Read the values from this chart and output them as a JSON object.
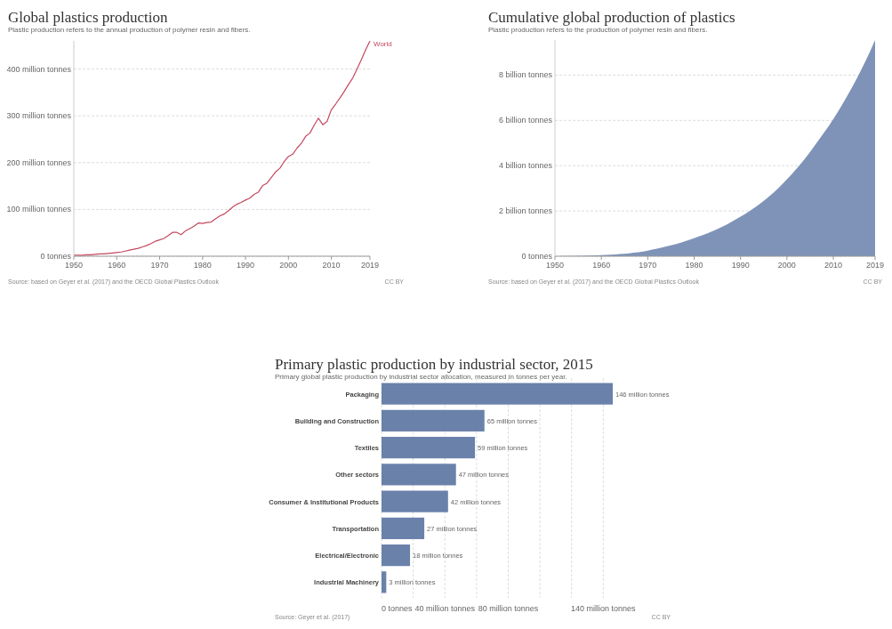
{
  "chart_data": [
    {
      "type": "line",
      "title": "Global plastics production",
      "subtitle": "Plastic production refers to the annual production of polymer resin and fibers.",
      "x": [
        1950,
        1951,
        1952,
        1953,
        1954,
        1955,
        1956,
        1957,
        1958,
        1959,
        1960,
        1961,
        1962,
        1963,
        1964,
        1965,
        1966,
        1967,
        1968,
        1969,
        1970,
        1971,
        1972,
        1973,
        1974,
        1975,
        1976,
        1977,
        1978,
        1979,
        1980,
        1981,
        1982,
        1983,
        1984,
        1985,
        1986,
        1987,
        1988,
        1989,
        1990,
        1991,
        1992,
        1993,
        1994,
        1995,
        1996,
        1997,
        1998,
        1999,
        2000,
        2001,
        2002,
        2003,
        2004,
        2005,
        2006,
        2007,
        2008,
        2009,
        2010,
        2011,
        2012,
        2013,
        2014,
        2015,
        2016,
        2017,
        2018,
        2019
      ],
      "series": [
        {
          "name": "World",
          "color": "#c4485f",
          "values": [
            2,
            2,
            2,
            3,
            3,
            4,
            5,
            5,
            6,
            7,
            8,
            9,
            11,
            13,
            15,
            17,
            20,
            23,
            27,
            32,
            35,
            38,
            44,
            51,
            51,
            46,
            54,
            59,
            64,
            71,
            70,
            72,
            73,
            80,
            86,
            90,
            97,
            105,
            111,
            115,
            120,
            124,
            132,
            137,
            151,
            156,
            168,
            180,
            188,
            202,
            213,
            218,
            231,
            241,
            256,
            263,
            280,
            295,
            281,
            288,
            313,
            325,
            338,
            352,
            367,
            381,
            400,
            420,
            441,
            460
          ]
        }
      ],
      "xlim": [
        1950,
        2019
      ],
      "xticks": [
        1950,
        1960,
        1970,
        1980,
        1990,
        2000,
        2010,
        2019
      ],
      "ylim": [
        0,
        460
      ],
      "yticks": [
        {
          "value": 0,
          "label": "0 tonnes"
        },
        {
          "value": 100,
          "label": "100 million tonnes"
        },
        {
          "value": 200,
          "label": "200 million tonnes"
        },
        {
          "value": 300,
          "label": "300 million tonnes"
        },
        {
          "value": 400,
          "label": "400 million tonnes"
        }
      ],
      "grid": "y",
      "annotations": [
        "Source: based on Geyer et al. (2017) and the OECD Global Plastics Outlook",
        "CC BY"
      ]
    },
    {
      "type": "area",
      "title": "Cumulative global production of plastics",
      "subtitle": "Plastic production refers to the production of polymer resin and fibers.",
      "x": [
        1950,
        1951,
        1952,
        1953,
        1954,
        1955,
        1956,
        1957,
        1958,
        1959,
        1960,
        1961,
        1962,
        1963,
        1964,
        1965,
        1966,
        1967,
        1968,
        1969,
        1970,
        1971,
        1972,
        1973,
        1974,
        1975,
        1976,
        1977,
        1978,
        1979,
        1980,
        1981,
        1982,
        1983,
        1984,
        1985,
        1986,
        1987,
        1988,
        1989,
        1990,
        1991,
        1992,
        1993,
        1994,
        1995,
        1996,
        1997,
        1998,
        1999,
        2000,
        2001,
        2002,
        2003,
        2004,
        2005,
        2006,
        2007,
        2008,
        2009,
        2010,
        2011,
        2012,
        2013,
        2014,
        2015,
        2016,
        2017,
        2018,
        2019
      ],
      "series": [
        {
          "color": "#7f93b8",
          "values": [
            0,
            0,
            0.01,
            0.01,
            0.01,
            0.02,
            0.02,
            0.03,
            0.03,
            0.04,
            0.05,
            0.06,
            0.07,
            0.08,
            0.1,
            0.11,
            0.13,
            0.16,
            0.18,
            0.21,
            0.25,
            0.29,
            0.33,
            0.38,
            0.43,
            0.48,
            0.53,
            0.59,
            0.66,
            0.73,
            0.8,
            0.87,
            0.94,
            1.02,
            1.11,
            1.2,
            1.3,
            1.4,
            1.51,
            1.63,
            1.75,
            1.87,
            2,
            2.14,
            2.29,
            2.45,
            2.61,
            2.79,
            2.98,
            3.18,
            3.4,
            3.62,
            3.85,
            4.09,
            4.34,
            4.61,
            4.89,
            5.18,
            5.46,
            5.75,
            6.06,
            6.39,
            6.73,
            7.08,
            7.45,
            7.83,
            8.23,
            8.65,
            9.09,
            9.55
          ]
        }
      ],
      "xlim": [
        1950,
        2019
      ],
      "xticks": [
        1950,
        1960,
        1970,
        1980,
        1990,
        2000,
        2010,
        2019
      ],
      "ylim": [
        0,
        9.55
      ],
      "yticks": [
        {
          "value": 0,
          "label": "0 tonnes"
        },
        {
          "value": 2,
          "label": "2 billion tonnes"
        },
        {
          "value": 4,
          "label": "4 billion tonnes"
        },
        {
          "value": 6,
          "label": "6 billion tonnes"
        },
        {
          "value": 8,
          "label": "8 billion tonnes"
        }
      ],
      "grid": "y",
      "annotations": [
        "Source: based on Geyer et al. (2017) and the OECD Global Plastics Outlook",
        "CC BY"
      ]
    },
    {
      "type": "bar",
      "orientation": "horizontal",
      "title": "Primary plastic production by industrial sector, 2015",
      "subtitle": "Primary global plastic production by industrial sector allocation, measured in tonnes per year.",
      "categories": [
        "Packaging",
        "Building and Construction",
        "Textiles",
        "Other sectors",
        "Consumer & Institutional Products",
        "Transportation",
        "Electrical/Electronic",
        "Industrial Machinery"
      ],
      "values": [
        146,
        65,
        59,
        47,
        42,
        27,
        18,
        3
      ],
      "color": "#6a81aa",
      "value_labels": [
        "146 million tonnes",
        "65 million tonnes",
        "59 million tonnes",
        "47 million tonnes",
        "42 million tonnes",
        "27 million tonnes",
        "18 million tonnes",
        "3 million tonnes"
      ],
      "xlim": [
        0,
        146
      ],
      "xticks": [
        {
          "value": 0,
          "label": "0 tonnes"
        },
        {
          "value": 20,
          "label": null
        },
        {
          "value": 40,
          "label": "40 million tonnes"
        },
        {
          "value": 60,
          "label": null
        },
        {
          "value": 80,
          "label": "80 million tonnes"
        },
        {
          "value": 100,
          "label": null
        },
        {
          "value": 120,
          "label": null
        },
        {
          "value": 140,
          "label": "140 million tonnes"
        }
      ],
      "grid": "x",
      "annotations": [
        "Source: Geyer et al. (2017)",
        "CC BY"
      ]
    }
  ]
}
